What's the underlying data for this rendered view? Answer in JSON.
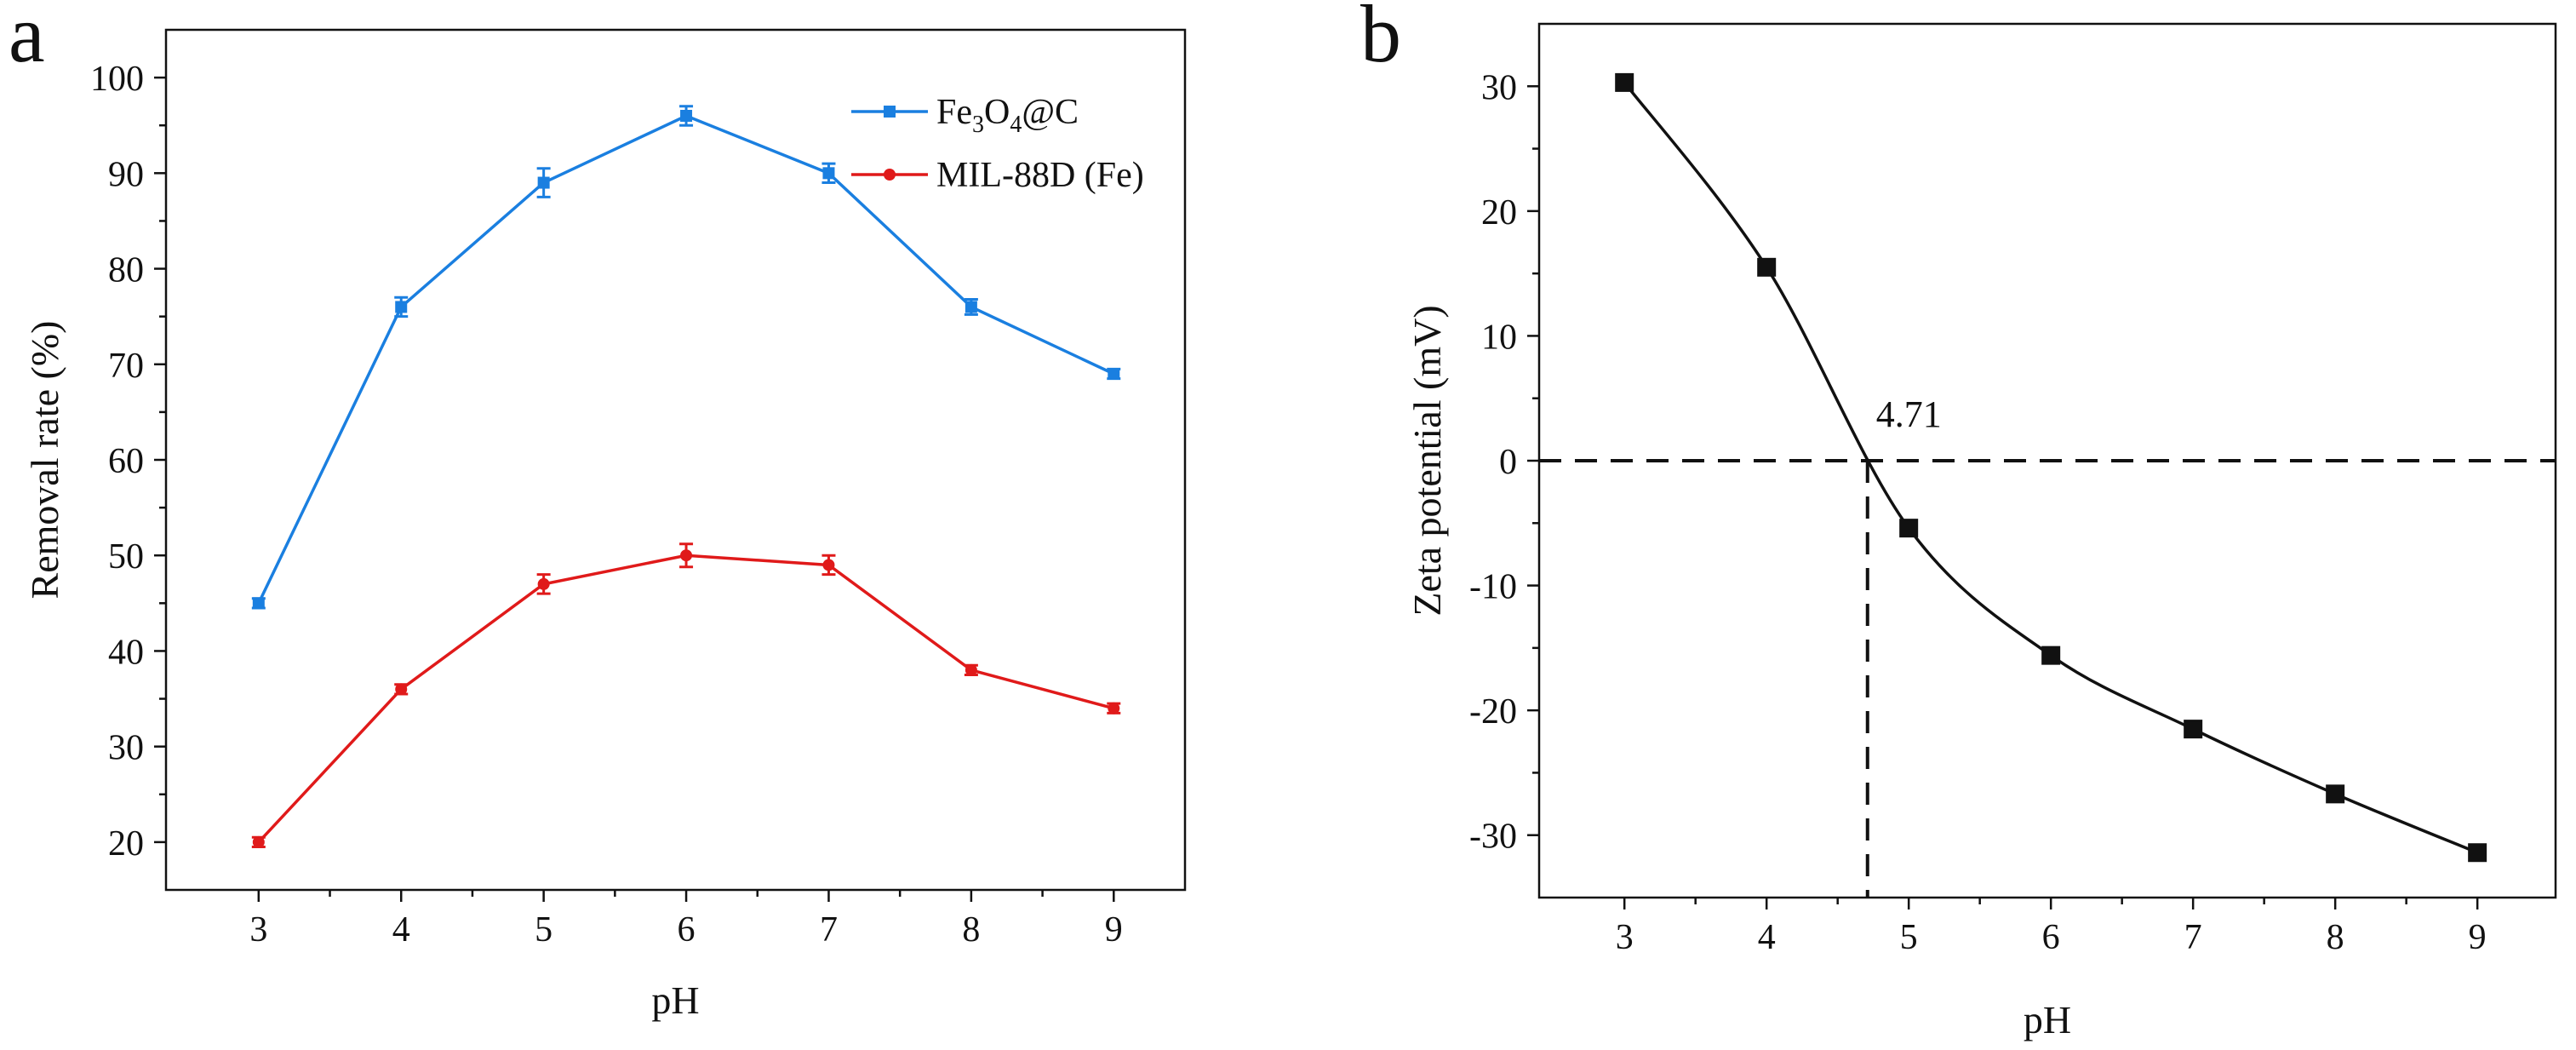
{
  "panels": {
    "a": {
      "letter": "a"
    },
    "b": {
      "letter": "b"
    }
  },
  "chart_data": [
    {
      "panel": "a",
      "type": "line",
      "title": "",
      "xlabel": "pH",
      "ylabel": "Removal rate (%)",
      "x": [
        3,
        4,
        5,
        6,
        7,
        8,
        9
      ],
      "xlim": [
        2.35,
        9.5
      ],
      "ylim": [
        15,
        105
      ],
      "xticks": [
        3,
        4,
        5,
        6,
        7,
        8,
        9
      ],
      "yticks": [
        20,
        30,
        40,
        50,
        60,
        70,
        80,
        90,
        100
      ],
      "legend_position": "top-right",
      "series": [
        {
          "name": "Fe3O4@C",
          "legend": {
            "base1": "Fe",
            "sub1": "3",
            "base2": "O",
            "sub2": "4",
            "rest": "@C"
          },
          "color": "#1a7fe0",
          "marker": "square",
          "values": [
            45,
            76,
            89,
            96,
            90,
            76,
            69
          ],
          "errors": [
            0.5,
            1.0,
            1.5,
            1.0,
            1.0,
            0.8,
            0.5
          ]
        },
        {
          "name": "MIL-88D (Fe)",
          "legend": {
            "text": "MIL-88D (Fe)"
          },
          "color": "#e01a1a",
          "marker": "circle",
          "values": [
            20,
            36,
            47,
            50,
            49,
            38,
            34
          ],
          "errors": [
            0.5,
            0.5,
            1.0,
            1.2,
            1.0,
            0.5,
            0.5
          ]
        }
      ]
    },
    {
      "panel": "b",
      "type": "line",
      "title": "",
      "xlabel": "pH",
      "ylabel": "Zeta potential (mV)",
      "x": [
        3,
        4,
        5,
        6,
        7,
        8,
        9
      ],
      "xlim": [
        2.4,
        9.55
      ],
      "ylim": [
        -35,
        35
      ],
      "xticks": [
        3,
        4,
        5,
        6,
        7,
        8,
        9
      ],
      "yticks": [
        -30,
        -20,
        -10,
        0,
        10,
        20,
        30
      ],
      "series": [
        {
          "name": "Zeta potential",
          "color": "#111111",
          "marker": "square",
          "values": [
            30.3,
            15.5,
            -5.4,
            -15.6,
            -21.5,
            -26.7,
            -31.4
          ]
        }
      ],
      "isoelectric_point": {
        "x": 4.71,
        "y": 0,
        "label": "4.71"
      }
    }
  ]
}
